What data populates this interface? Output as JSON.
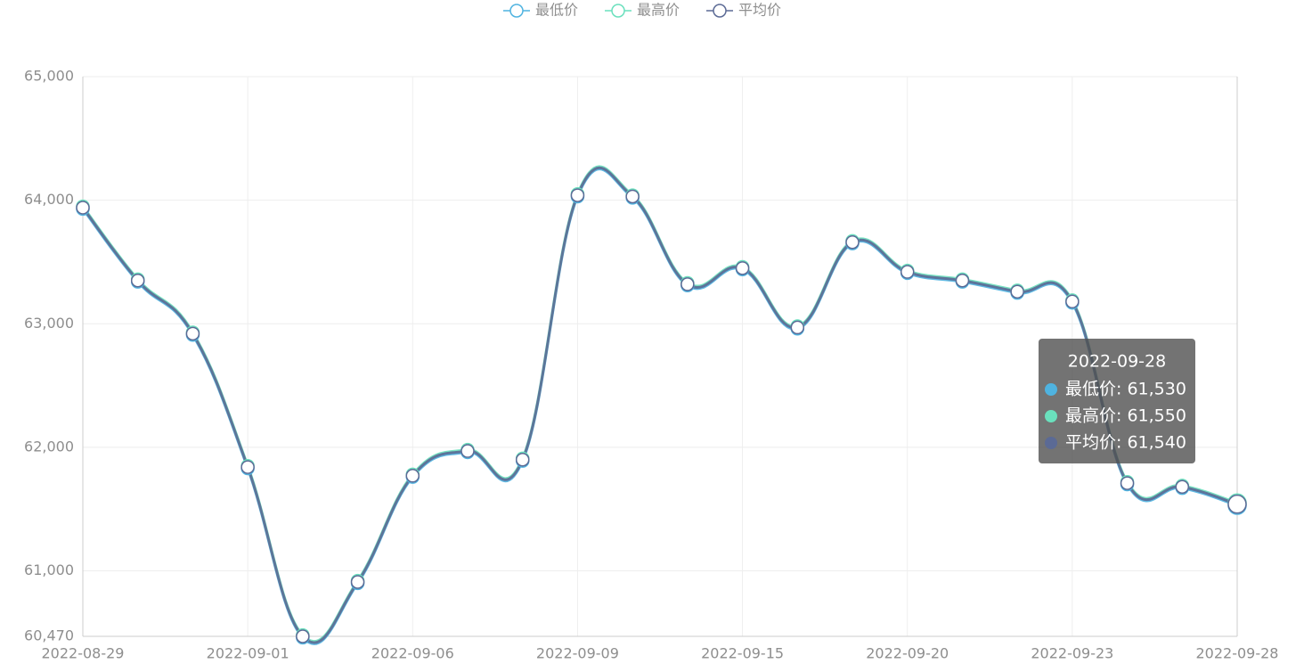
{
  "chart_data": {
    "type": "line",
    "categories": [
      "2022-08-29",
      null,
      null,
      "2022-09-01",
      null,
      null,
      "2022-09-06",
      null,
      null,
      "2022-09-09",
      null,
      null,
      "2022-09-15",
      null,
      null,
      "2022-09-20",
      null,
      null,
      "2022-09-23",
      null,
      null,
      "2022-09-28"
    ],
    "series": [
      {
        "name": "最低价",
        "color": "#4fb3e0",
        "values": [
          63930,
          63340,
          62910,
          61830,
          60460,
          60900,
          61760,
          61960,
          61890,
          64030,
          64020,
          63310,
          63440,
          62960,
          63650,
          63410,
          63340,
          63250,
          63170,
          61700,
          61670,
          61530
        ]
      },
      {
        "name": "最高价",
        "color": "#6ae0bd",
        "values": [
          63950,
          63360,
          62930,
          61850,
          60480,
          60920,
          61780,
          61980,
          61910,
          64050,
          64040,
          63330,
          63460,
          62980,
          63670,
          63430,
          63360,
          63270,
          63190,
          61720,
          61690,
          61550
        ]
      },
      {
        "name": "平均价",
        "color": "#5b6a95",
        "values": [
          63940,
          63350,
          62920,
          61840,
          60470,
          60910,
          61770,
          61970,
          61900,
          64040,
          64030,
          63320,
          63450,
          62970,
          63660,
          63420,
          63350,
          63260,
          63180,
          61710,
          61680,
          61540
        ]
      }
    ],
    "ylim": [
      60470,
      65000
    ],
    "yticks": [
      {
        "value": 60470,
        "label": "60,470"
      },
      {
        "value": 61000,
        "label": "61,000"
      },
      {
        "value": 62000,
        "label": "62,000"
      },
      {
        "value": 63000,
        "label": "63,000"
      },
      {
        "value": 64000,
        "label": "64,000"
      },
      {
        "value": 65000,
        "label": "65,000"
      }
    ],
    "grid": true,
    "legend": "top",
    "tooltip": {
      "index": 21,
      "items": [
        "最低价: 61,530",
        "最高价: 61,550",
        "平均价: 61,540"
      ]
    }
  }
}
